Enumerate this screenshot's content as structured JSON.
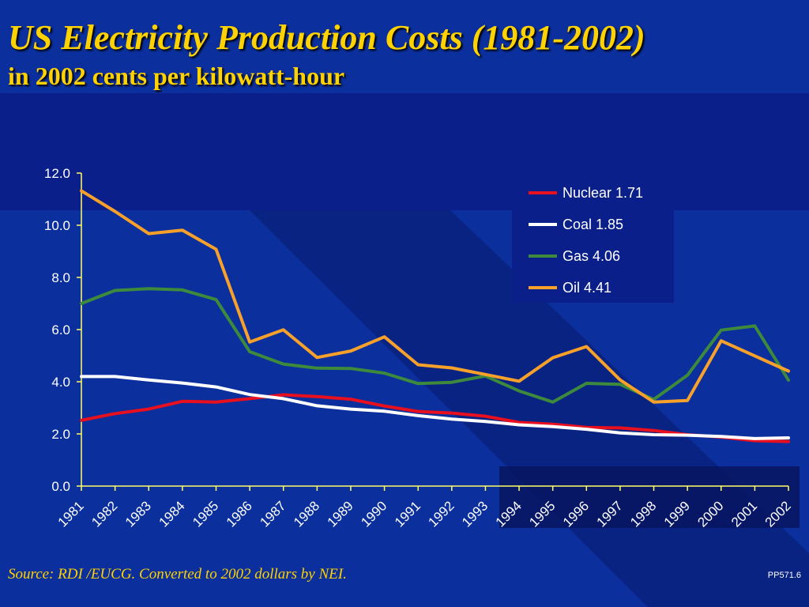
{
  "slide": {
    "title": "US Electricity Production Costs (1981-2002)",
    "subtitle": "in 2002 cents per kilowatt-hour",
    "source": "Source: RDI /EUCG. Converted to 2002 dollars by NEI.",
    "code": "PP571.6",
    "colors": {
      "background": "#0b2f9c",
      "title": "#ffd200",
      "axis": "#ffff66",
      "tick_text": "#ffffff"
    }
  },
  "chart_data": {
    "type": "line",
    "title": "US Electricity Production Costs (1981-2002)",
    "subtitle": "in 2002 cents per kilowatt-hour",
    "categories": [
      "1981",
      "1982",
      "1983",
      "1984",
      "1985",
      "1986",
      "1987",
      "1988",
      "1989",
      "1990",
      "1991",
      "1992",
      "1993",
      "1994",
      "1995",
      "1996",
      "1997",
      "1998",
      "1999",
      "2000",
      "2001",
      "2002"
    ],
    "ylim": [
      0,
      12
    ],
    "yticks": [
      "0.0",
      "2.0",
      "4.0",
      "6.0",
      "8.0",
      "10.0",
      "12.0"
    ],
    "ytick_values": [
      0,
      2,
      4,
      6,
      8,
      10,
      12
    ],
    "grid": false,
    "legend_position": "top-right",
    "series": [
      {
        "name": "Nuclear",
        "legend_label": "Nuclear 1.71",
        "color": "#e8101e",
        "values": [
          2.52,
          2.78,
          2.95,
          3.25,
          3.22,
          3.35,
          3.5,
          3.43,
          3.33,
          3.07,
          2.86,
          2.8,
          2.68,
          2.44,
          2.37,
          2.25,
          2.23,
          2.13,
          1.97,
          1.88,
          1.74,
          1.71
        ]
      },
      {
        "name": "Coal",
        "legend_label": "Coal 1.85",
        "color": "#ffffff",
        "values": [
          4.2,
          4.2,
          4.07,
          3.95,
          3.8,
          3.51,
          3.35,
          3.08,
          2.95,
          2.87,
          2.7,
          2.57,
          2.48,
          2.35,
          2.28,
          2.18,
          2.04,
          1.97,
          1.95,
          1.9,
          1.82,
          1.85
        ]
      },
      {
        "name": "Gas",
        "legend_label": "Gas 4.06",
        "color": "#3d8a3d",
        "values": [
          7.0,
          7.5,
          7.57,
          7.52,
          7.15,
          5.15,
          4.68,
          4.52,
          4.51,
          4.33,
          3.93,
          3.98,
          4.22,
          3.65,
          3.22,
          3.94,
          3.9,
          3.32,
          4.25,
          5.98,
          6.14,
          4.06
        ]
      },
      {
        "name": "Oil",
        "legend_label": "Oil 4.41",
        "color": "#f7a12a",
        "values": [
          11.32,
          10.53,
          9.68,
          9.81,
          9.08,
          5.52,
          5.99,
          4.93,
          5.18,
          5.72,
          4.65,
          4.53,
          4.28,
          4.02,
          4.92,
          5.35,
          4.07,
          3.22,
          3.28,
          5.57,
          4.99,
          4.41
        ]
      }
    ]
  }
}
